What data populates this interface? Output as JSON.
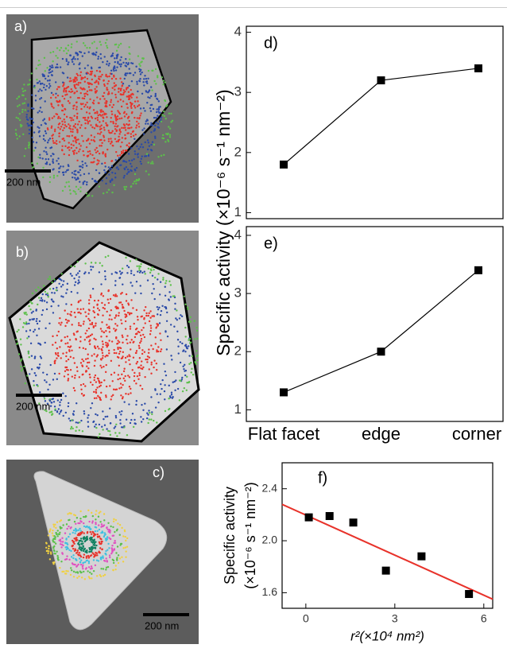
{
  "images": [
    {
      "label": "a)",
      "scale_bar": "200 nm"
    },
    {
      "label": "b)",
      "scale_bar": "200 nm"
    },
    {
      "label": "c)",
      "scale_bar": "200 nm"
    }
  ],
  "chart_data": [
    {
      "type": "line",
      "label": "d)",
      "y_label": "Specific activity (×10⁻⁶ s⁻¹ nm⁻²)",
      "categories": [
        "Flat facet",
        "edge",
        "corner"
      ],
      "values": [
        1.8,
        3.2,
        3.4
      ],
      "color": "#000000",
      "ylim": [
        0.9,
        4.1
      ],
      "yticks": [
        1,
        2,
        3,
        4
      ]
    },
    {
      "type": "line",
      "label": "e)",
      "categories": [
        "Flat facet",
        "edge",
        "corner"
      ],
      "values": [
        1.3,
        2.0,
        3.4
      ],
      "color": "#000000",
      "ylim": [
        0.8,
        4.15
      ],
      "yticks": [
        1,
        2,
        3,
        4
      ]
    },
    {
      "type": "scatter",
      "label": "f)",
      "y_label": [
        "Specific activity",
        "(×10⁻⁶ s⁻¹ nm⁻²)"
      ],
      "x_label": "r²(×10⁴ nm²)",
      "x": [
        0.1,
        0.8,
        1.6,
        2.7,
        3.9,
        5.5
      ],
      "values": [
        2.18,
        2.19,
        2.14,
        1.77,
        1.88,
        1.59
      ],
      "color": "#000000",
      "fit_line": {
        "x": [
          -0.8,
          6.3
        ],
        "values": [
          2.28,
          1.55
        ],
        "color": "#e8322a"
      },
      "xlim": [
        -0.8,
        6.3
      ],
      "ylim": [
        1.48,
        2.6
      ],
      "xticks": [
        0,
        3,
        6
      ],
      "yticks": [
        {
          "value": 1.6,
          "label": "1.6"
        },
        {
          "value": 2.0,
          "label": "2.0"
        },
        {
          "value": 2.4,
          "label": "2.4"
        }
      ]
    }
  ]
}
